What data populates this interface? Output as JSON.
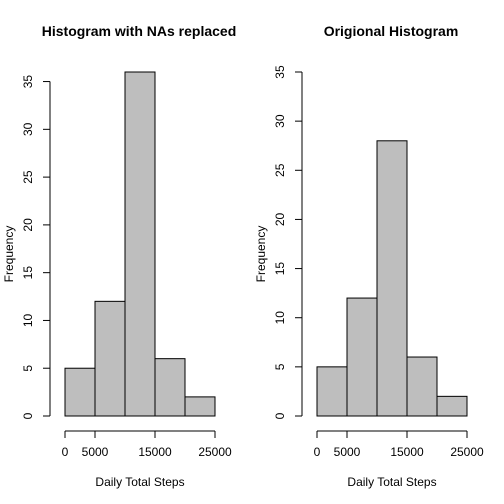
{
  "chart_data": [
    {
      "type": "bar",
      "title": "Histogram with NAs replaced",
      "xlabel": "Daily Total Steps",
      "ylabel": "Frequency",
      "bin_edges": [
        0,
        5000,
        10000,
        15000,
        20000,
        25000
      ],
      "values": [
        5,
        12,
        36,
        6,
        2
      ],
      "xlim": [
        0,
        25000
      ],
      "ylim": [
        0,
        36
      ],
      "x_ticks": [
        0,
        5000,
        15000,
        25000
      ],
      "y_ticks": [
        0,
        5,
        10,
        15,
        20,
        25,
        30,
        35
      ],
      "bar_color": "#bebebe",
      "grid": false
    },
    {
      "type": "bar",
      "title": "Origional Histogram",
      "xlabel": "Daily Total Steps",
      "ylabel": "Frequency",
      "bin_edges": [
        0,
        5000,
        10000,
        15000,
        20000,
        25000
      ],
      "values": [
        5,
        12,
        28,
        6,
        2
      ],
      "xlim": [
        0,
        25000
      ],
      "ylim": [
        0,
        35
      ],
      "x_ticks": [
        0,
        5000,
        15000,
        25000
      ],
      "y_ticks": [
        0,
        5,
        10,
        15,
        20,
        25,
        30,
        35
      ],
      "bar_color": "#bebebe",
      "grid": false
    }
  ]
}
